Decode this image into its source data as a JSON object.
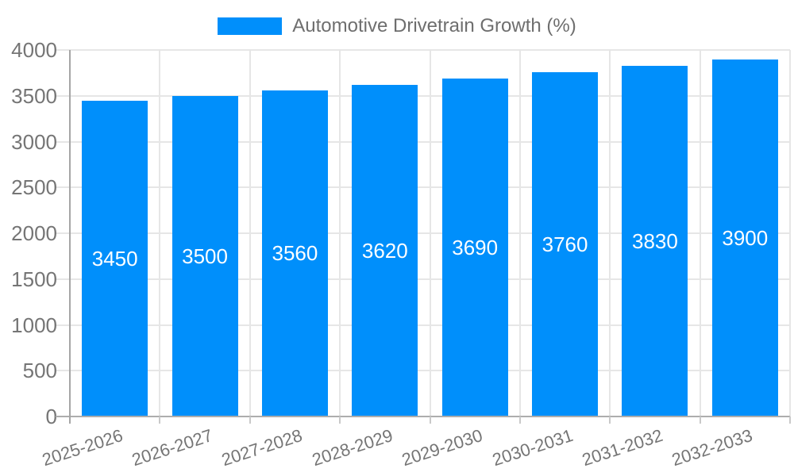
{
  "legend": {
    "label": "Automotive Drivetrain Growth (%)"
  },
  "chart_data": {
    "type": "bar",
    "title": "Automotive Drivetrain Growth (%)",
    "categories": [
      "2025-2026",
      "2026-2027",
      "2027-2028",
      "2028-2029",
      "2029-2030",
      "2030-2031",
      "2031-2032",
      "2032-2033"
    ],
    "series": [
      {
        "name": "Automotive Drivetrain Growth (%)",
        "values": [
          3450,
          3500,
          3560,
          3620,
          3690,
          3760,
          3830,
          3900
        ]
      }
    ],
    "bar_labels": [
      "3450",
      "3500",
      "3560",
      "3620",
      "3690",
      "3760",
      "3830",
      "3900"
    ],
    "xlabel": "",
    "ylabel": "",
    "ylim": [
      0,
      4000
    ],
    "yticks": [
      0,
      500,
      1000,
      1500,
      2000,
      2500,
      3000,
      3500,
      4000
    ],
    "grid": true,
    "legend_position": "top",
    "colors": {
      "bar": "#008FFB",
      "bar_label": "#FFFFFF",
      "axis_text": "#757575",
      "grid_line": "#E6E6E6",
      "axis_line": "#ADADAD",
      "tick_line": "#C9C9C9",
      "background": "#FFFFFF"
    }
  }
}
